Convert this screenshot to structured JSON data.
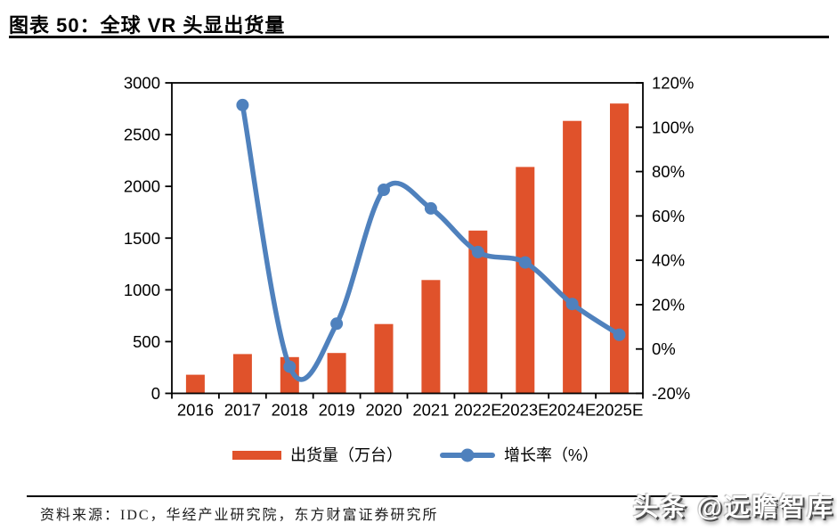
{
  "header": {
    "title": "图表 50：全球 VR 头显出货量"
  },
  "chart_data": {
    "type": "bar",
    "subtype": "combo-bar-line",
    "title": "全球VR头显出货量",
    "categories": [
      "2016",
      "2017",
      "2018",
      "2019",
      "2020",
      "2021",
      "2022E",
      "2023E",
      "2024E",
      "2025E"
    ],
    "series": [
      {
        "name": "出货量（万台）",
        "type": "bar",
        "axis": "left",
        "color": "#E0522B",
        "values": [
          180,
          380,
          350,
          390,
          670,
          1095,
          1573,
          2187,
          2632,
          2800
        ]
      },
      {
        "name": "增长率（%）",
        "type": "line",
        "axis": "right",
        "color": "#4F81BD",
        "values": [
          null,
          110,
          -8,
          11.4,
          71.8,
          63.4,
          43.7,
          39,
          20.3,
          6.4
        ]
      }
    ],
    "left_axis": {
      "min": 0,
      "max": 3000,
      "step": 500,
      "tick_labels": [
        "0",
        "500",
        "1000",
        "1500",
        "2000",
        "2500",
        "3000"
      ]
    },
    "right_axis": {
      "min": -20,
      "max": 120,
      "step": 20,
      "suffix": "%",
      "tick_labels": [
        "-20%",
        "0%",
        "20%",
        "40%",
        "60%",
        "80%",
        "100%",
        "120%"
      ]
    },
    "grid": false,
    "legend_position": "bottom"
  },
  "legend": {
    "bar_label": "出货量（万台）",
    "line_label": "增长率（%）"
  },
  "footer": {
    "source": "资料来源：IDC，华经产业研究院，东方财富证券研究所"
  },
  "watermark": {
    "text": "头条 @远瞻智库"
  }
}
